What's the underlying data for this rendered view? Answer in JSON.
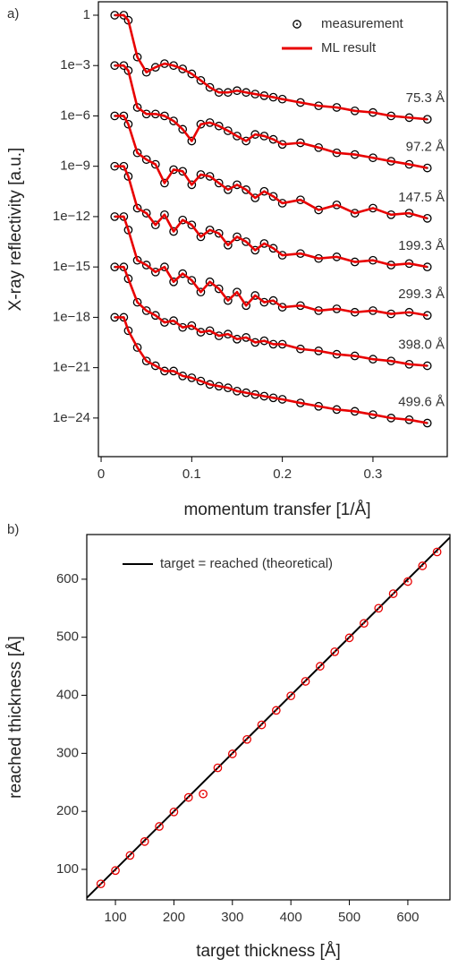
{
  "chart_data": [
    {
      "type": "line",
      "panel_label": "a)",
      "log_y": true,
      "xlabel": "momentum transfer [1/Å]",
      "ylabel": "X-ray reflectivity [a.u.]",
      "x": [
        0.015,
        0.025,
        0.03,
        0.04,
        0.05,
        0.06,
        0.07,
        0.08,
        0.09,
        0.1,
        0.11,
        0.12,
        0.13,
        0.14,
        0.15,
        0.16,
        0.17,
        0.18,
        0.19,
        0.2,
        0.22,
        0.24,
        0.26,
        0.28,
        0.3,
        0.32,
        0.34,
        0.36
      ],
      "xlim": [
        -0.003,
        0.382
      ],
      "xticks": [
        0,
        0.1,
        0.2,
        0.3
      ],
      "ylim": [
        5e-27,
        6.3
      ],
      "yticks": [
        1,
        {
          "value": 0.001,
          "label": "1e−3"
        },
        {
          "value": 1e-06,
          "label": "1e−6"
        },
        {
          "value": 1e-09,
          "label": "1e−9"
        },
        {
          "value": 1e-12,
          "label": "1e−12"
        },
        {
          "value": 1e-15,
          "label": "1e−15"
        },
        {
          "value": 1e-18,
          "label": "1e−18"
        },
        {
          "value": 1e-21,
          "label": "1e−21"
        },
        {
          "value": 1e-24,
          "label": "1e−24"
        }
      ],
      "curve_labels": [
        "75.3 Å",
        "97.2 Å",
        "147.5 Å",
        "199.3 Å",
        "299.3 Å",
        "398.0 Å",
        "499.6 Å"
      ],
      "legend": "upper right",
      "series": [
        {
          "name": "measurement",
          "color": "#000000",
          "style": "markers",
          "values": [
            [
              1,
              1,
              0.5,
              0.0032,
              0.0004,
              0.00079,
              0.0013,
              0.001,
              0.00063,
              0.00032,
              0.00013,
              5e-05,
              2.5e-05,
              2.5e-05,
              3.2e-05,
              2.5e-05,
              2e-05,
              1.6e-05,
              1.3e-05,
              1e-05,
              6.3e-06,
              4e-06,
              3.2e-06,
              2e-06,
              1.6e-06,
              1e-06,
              7.9e-07,
              6.3e-07
            ],
            [
              0.001,
              0.001,
              0.0005,
              3.2e-06,
              1.3e-06,
              1.3e-06,
              1e-06,
              5e-07,
              1.6e-07,
              3.2e-08,
              3.2e-07,
              4e-07,
              2.5e-07,
              1.3e-07,
              6.3e-08,
              3.2e-08,
              7.9e-08,
              6.3e-08,
              4e-08,
              2e-08,
              2.5e-08,
              1.3e-08,
              6.3e-09,
              5e-09,
              3.2e-09,
              2e-09,
              1.3e-09,
              7.9e-10
            ],
            [
              1e-06,
              1e-06,
              3.2e-07,
              6.3e-09,
              2.5e-09,
              1.3e-09,
              1e-10,
              6.3e-10,
              5e-10,
              7.9e-11,
              3.2e-10,
              2.5e-10,
              1e-10,
              4e-11,
              7.9e-11,
              4e-11,
              1.3e-11,
              3.2e-11,
              1.6e-11,
              6.3e-12,
              1e-11,
              2.5e-12,
              5e-12,
              1.6e-12,
              3.2e-12,
              1.3e-12,
              1.6e-12,
              7.9e-13
            ],
            [
              1e-09,
              1e-09,
              2.5e-10,
              3.2e-12,
              1.6e-12,
              3.2e-13,
              1.3e-12,
              1.3e-13,
              6.3e-13,
              3.2e-13,
              6.3e-14,
              1.6e-13,
              1e-13,
              2e-14,
              6.3e-14,
              3.2e-14,
              1e-14,
              2.5e-14,
              1.3e-14,
              5e-15,
              6.3e-15,
              3.2e-15,
              4e-15,
              2e-15,
              2.5e-15,
              1.3e-15,
              1.6e-15,
              1e-15
            ],
            [
              1e-12,
              1e-12,
              1.6e-13,
              2.5e-15,
              1.3e-15,
              5e-16,
              1e-15,
              1.3e-16,
              4e-16,
              1.6e-16,
              3.2e-17,
              1.3e-16,
              5e-17,
              1e-17,
              3.2e-17,
              5e-18,
              2e-17,
              7.9e-18,
              1e-17,
              4e-18,
              5e-18,
              2.5e-18,
              3.2e-18,
              2e-18,
              2.5e-18,
              1.6e-18,
              2e-18,
              1.3e-18
            ],
            [
              1e-15,
              1e-15,
              2e-16,
              7.9e-18,
              2.5e-18,
              1.3e-18,
              5e-19,
              6.3e-19,
              2.5e-19,
              3.2e-19,
              1.3e-19,
              1.6e-19,
              7.9e-20,
              1e-19,
              5e-20,
              6.3e-20,
              3.2e-20,
              4e-20,
              2.5e-20,
              2.5e-20,
              1.3e-20,
              1e-20,
              6.3e-21,
              5e-21,
              3.2e-21,
              2.5e-21,
              1.6e-21,
              1.3e-21
            ],
            [
              1e-18,
              1e-18,
              1.6e-19,
              1.6e-20,
              2.5e-21,
              1.3e-21,
              6.3e-22,
              6.3e-22,
              3.2e-22,
              2.5e-22,
              1.6e-22,
              1e-22,
              7.9e-23,
              6.3e-23,
              4e-23,
              3.2e-23,
              2.5e-23,
              2e-23,
              1.6e-23,
              1.3e-23,
              7.9e-24,
              5e-24,
              3.2e-24,
              2.5e-24,
              1.6e-24,
              1e-24,
              7.9e-25,
              5e-25
            ]
          ]
        },
        {
          "name": "ML result",
          "color": "#e80000",
          "style": "line",
          "values": [
            [
              1,
              1,
              0.5,
              0.0032,
              0.0004,
              0.00079,
              0.0013,
              0.001,
              0.00063,
              0.00032,
              0.00013,
              5e-05,
              2.5e-05,
              2.5e-05,
              3.2e-05,
              2.5e-05,
              2e-05,
              1.6e-05,
              1.3e-05,
              1e-05,
              6.3e-06,
              4e-06,
              3.2e-06,
              2e-06,
              1.6e-06,
              1e-06,
              7.9e-07,
              6.3e-07
            ],
            [
              0.001,
              0.001,
              0.0005,
              3.2e-06,
              1.3e-06,
              1.3e-06,
              1e-06,
              5e-07,
              1.6e-07,
              3.2e-08,
              3.2e-07,
              4e-07,
              2.5e-07,
              1.3e-07,
              6.3e-08,
              3.2e-08,
              7.9e-08,
              6.3e-08,
              4e-08,
              2e-08,
              2.5e-08,
              1.3e-08,
              6.3e-09,
              5e-09,
              3.2e-09,
              2e-09,
              1.3e-09,
              7.9e-10
            ],
            [
              1e-06,
              1e-06,
              3.2e-07,
              6.3e-09,
              2.5e-09,
              1.3e-09,
              1e-10,
              6.3e-10,
              5e-10,
              7.9e-11,
              3.2e-10,
              2.5e-10,
              1e-10,
              4e-11,
              7.9e-11,
              4e-11,
              1.3e-11,
              3.2e-11,
              1.6e-11,
              6.3e-12,
              1e-11,
              2.5e-12,
              5e-12,
              1.6e-12,
              3.2e-12,
              1.3e-12,
              1.6e-12,
              7.9e-13
            ],
            [
              1e-09,
              1e-09,
              2.5e-10,
              3.2e-12,
              1.6e-12,
              3.2e-13,
              1.3e-12,
              1.3e-13,
              6.3e-13,
              3.2e-13,
              6.3e-14,
              1.6e-13,
              1e-13,
              2e-14,
              6.3e-14,
              3.2e-14,
              1e-14,
              2.5e-14,
              1.3e-14,
              5e-15,
              6.3e-15,
              3.2e-15,
              4e-15,
              2e-15,
              2.5e-15,
              1.3e-15,
              1.6e-15,
              1e-15
            ],
            [
              1e-12,
              1e-12,
              1.6e-13,
              2.5e-15,
              1.3e-15,
              5e-16,
              1e-15,
              1.3e-16,
              4e-16,
              1.6e-16,
              3.2e-17,
              1.3e-16,
              5e-17,
              1e-17,
              3.2e-17,
              5e-18,
              2e-17,
              7.9e-18,
              1e-17,
              4e-18,
              5e-18,
              2.5e-18,
              3.2e-18,
              2e-18,
              2.5e-18,
              1.6e-18,
              2e-18,
              1.3e-18
            ],
            [
              1e-15,
              1e-15,
              2e-16,
              7.9e-18,
              2.5e-18,
              1.3e-18,
              5e-19,
              6.3e-19,
              2.5e-19,
              3.2e-19,
              1.3e-19,
              1.6e-19,
              7.9e-20,
              1e-19,
              5e-20,
              6.3e-20,
              3.2e-20,
              4e-20,
              2.5e-20,
              2.5e-20,
              1.3e-20,
              1e-20,
              6.3e-21,
              5e-21,
              3.2e-21,
              2.5e-21,
              1.6e-21,
              1.3e-21
            ],
            [
              1e-18,
              1e-18,
              1.6e-19,
              1.6e-20,
              2.5e-21,
              1.3e-21,
              6.3e-22,
              6.3e-22,
              3.2e-22,
              2.5e-22,
              1.6e-22,
              1e-22,
              7.9e-23,
              6.3e-23,
              4e-23,
              3.2e-23,
              2.5e-23,
              2e-23,
              1.6e-23,
              1.3e-23,
              7.9e-24,
              5e-24,
              3.2e-24,
              2.5e-24,
              1.6e-24,
              1e-24,
              7.9e-25,
              5e-25
            ]
          ]
        }
      ]
    },
    {
      "type": "scatter",
      "panel_label": "b)",
      "xlabel": "target thickness [Å]",
      "ylabel": "reached thickness [Å]",
      "x": [
        75,
        100,
        125,
        150,
        175,
        200,
        225,
        250,
        275,
        300,
        325,
        350,
        375,
        400,
        425,
        450,
        475,
        500,
        525,
        550,
        575,
        600,
        625,
        650
      ],
      "values": [
        75,
        98,
        124,
        148,
        174,
        199,
        224,
        230,
        275,
        299,
        324,
        349,
        374,
        399,
        424,
        450,
        475,
        499,
        524,
        550,
        575,
        596,
        623,
        647
      ],
      "color": "#e80000",
      "xlim": [
        51,
        672
      ],
      "xticks": [
        100,
        200,
        300,
        400,
        500,
        600
      ],
      "ylim": [
        47.5,
        677
      ],
      "yticks": [
        100,
        200,
        300,
        400,
        500,
        600
      ],
      "reference_line": {
        "name": "target = reached (theoretical)",
        "color": "#000000"
      },
      "legend": "upper left"
    }
  ]
}
